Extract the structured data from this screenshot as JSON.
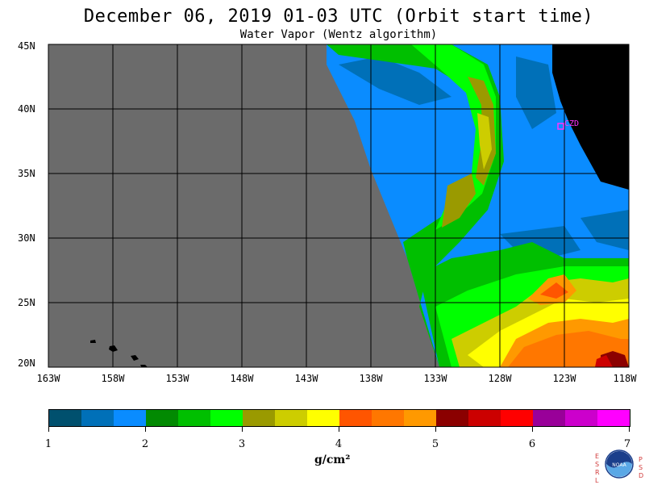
{
  "title": "December 06, 2019  01-03 UTC  (Orbit start time)",
  "subtitle": "Water Vapor (Wentz algorithm)",
  "map": {
    "lat_labels": [
      "45N",
      "40N",
      "35N",
      "30N",
      "25N",
      "20N"
    ],
    "lon_labels": [
      "163W",
      "158W",
      "153W",
      "148W",
      "143W",
      "138W",
      "133W",
      "128W",
      "123W",
      "118W"
    ],
    "station_label": "CZD",
    "colors": {
      "no_data": "#6b6b6b",
      "land": "#000000",
      "station": "#ff33ff"
    }
  },
  "colorbar": {
    "colors": [
      "#00506e",
      "#0070b8",
      "#0a8cff",
      "#028a02",
      "#00bf00",
      "#00ff00",
      "#9a9a00",
      "#cdcd00",
      "#ffff00",
      "#ff5500",
      "#ff7700",
      "#ff9900",
      "#8b0000",
      "#cc0000",
      "#ff0000",
      "#990099",
      "#cc00cc",
      "#ff00ff"
    ],
    "labels": [
      "1",
      "2",
      "3",
      "4",
      "5",
      "6",
      "7"
    ],
    "units": "g/cm²"
  },
  "logo": {
    "name": "NOAA",
    "left_letters": "ESRL",
    "right_letters": "PSD"
  }
}
